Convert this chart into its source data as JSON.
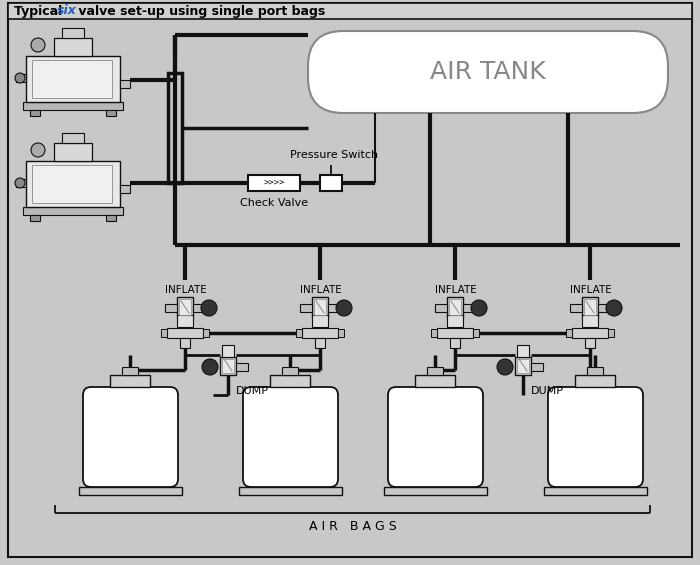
{
  "title_normal": "Typical ",
  "title_colored": "six",
  "title_rest": " valve set-up using single port bags",
  "title_color": "#2060c0",
  "bg_outer": "#c8c8c8",
  "bg_inner": "#e0e0e8",
  "air_tank_label": "AIR TANK",
  "pressure_switch_label": "Pressure Switch",
  "check_valve_label": "Check Valve",
  "inflate_label": "INFLATE",
  "dump_label": "DUMP",
  "air_bags_label": "A I R   B A G S",
  "lc": "#111111",
  "wc": "#ffffff",
  "gc": "#cccccc",
  "dg": "#555555",
  "lg": "#aaaaaa"
}
